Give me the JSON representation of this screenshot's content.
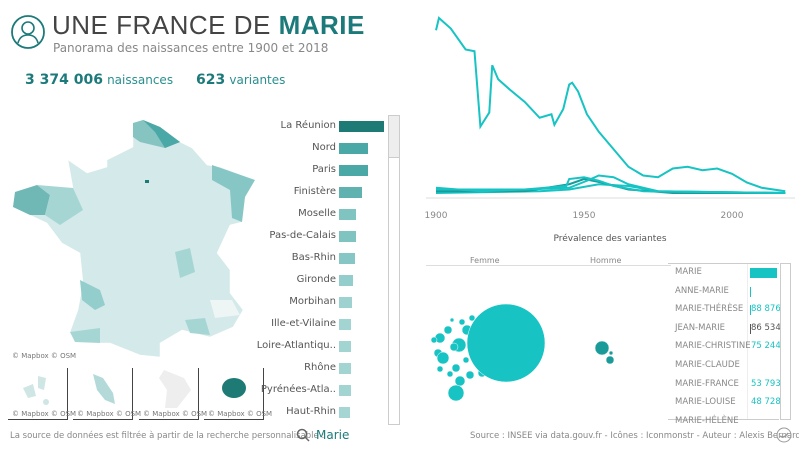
{
  "header": {
    "title_prefix": "UNE FRANCE DE ",
    "title_name": "MARIE",
    "subtitle": "Panorama des naissances entre 1900 et 2018",
    "icon": "user-icon"
  },
  "kpis": {
    "births_value": "3 374 006",
    "births_label": "naissances",
    "variants_value": "623",
    "variants_label": "variantes"
  },
  "colors": {
    "accent": "#1d7a7a",
    "line": "#17c3c3",
    "bubble": "#17c3c3",
    "bubble_male": "#1a9a98"
  },
  "departments": [
    {
      "name": "La Réunion",
      "value": 100,
      "color": "#1d7a74"
    },
    {
      "name": "Nord",
      "value": 64,
      "color": "#4aa8a6"
    },
    {
      "name": "Paris",
      "value": 64,
      "color": "#4aa8a6"
    },
    {
      "name": "Finistère",
      "value": 51,
      "color": "#5fb2b0"
    },
    {
      "name": "Moselle",
      "value": 38,
      "color": "#80c4c2"
    },
    {
      "name": "Pas-de-Calais",
      "value": 37,
      "color": "#80c4c2"
    },
    {
      "name": "Bas-Rhin",
      "value": 35,
      "color": "#86c7c5"
    },
    {
      "name": "Gironde",
      "value": 31,
      "color": "#93cecc"
    },
    {
      "name": "Morbihan",
      "value": 29,
      "color": "#9dd2d0"
    },
    {
      "name": "Ille-et-Vilaine",
      "value": 27,
      "color": "#a2d4d2"
    },
    {
      "name": "Loire-Atlantiqu..",
      "value": 27,
      "color": "#a2d4d2"
    },
    {
      "name": "Rhône",
      "value": 27,
      "color": "#a2d4d2"
    },
    {
      "name": "Pyrénées-Atla..",
      "value": 27,
      "color": "#a2d4d2"
    },
    {
      "name": "Haut-Rhin",
      "value": 25,
      "color": "#a6d6d4"
    }
  ],
  "map": {
    "attribution": "© Mapbox © OSM",
    "insets": [
      "Guadeloupe",
      "Martinique",
      "Guyane",
      "La Réunion"
    ]
  },
  "chart_data": {
    "type": "line",
    "x_ticks": [
      "1900",
      "1950",
      "2000"
    ],
    "xlim": [
      1898,
      2018
    ],
    "series": [
      {
        "color": "#17c3c3",
        "points": [
          [
            1900,
            93
          ],
          [
            1901,
            100
          ],
          [
            1905,
            94
          ],
          [
            1910,
            82
          ],
          [
            1913,
            81
          ],
          [
            1915,
            38
          ],
          [
            1918,
            46
          ],
          [
            1919,
            73
          ],
          [
            1921,
            65
          ],
          [
            1925,
            59
          ],
          [
            1930,
            52
          ],
          [
            1935,
            43
          ],
          [
            1939,
            45
          ],
          [
            1940,
            39
          ],
          [
            1943,
            48
          ],
          [
            1945,
            62
          ],
          [
            1946,
            63
          ],
          [
            1948,
            58
          ],
          [
            1951,
            45
          ],
          [
            1955,
            35
          ],
          [
            1960,
            25
          ],
          [
            1965,
            15
          ],
          [
            1970,
            10
          ],
          [
            1975,
            9
          ],
          [
            1980,
            14
          ],
          [
            1985,
            15
          ],
          [
            1990,
            13
          ],
          [
            1995,
            14
          ],
          [
            2000,
            11
          ],
          [
            2005,
            6
          ],
          [
            2010,
            3
          ],
          [
            2018,
            1
          ]
        ]
      },
      {
        "color": "#17c3c3",
        "points": [
          [
            1900,
            3
          ],
          [
            1915,
            1
          ],
          [
            1930,
            2
          ],
          [
            1944,
            4
          ],
          [
            1945,
            8
          ],
          [
            1950,
            9
          ],
          [
            1955,
            7
          ],
          [
            1960,
            4
          ],
          [
            1970,
            1
          ],
          [
            2018,
            0
          ]
        ]
      },
      {
        "color": "#17c3c3",
        "points": [
          [
            1900,
            2
          ],
          [
            1930,
            2
          ],
          [
            1945,
            3
          ],
          [
            1951,
            7
          ],
          [
            1955,
            10
          ],
          [
            1960,
            9
          ],
          [
            1965,
            5
          ],
          [
            1975,
            1
          ],
          [
            2018,
            0
          ]
        ]
      },
      {
        "color": "#1a9a98",
        "points": [
          [
            1900,
            1
          ],
          [
            1930,
            1
          ],
          [
            1945,
            5
          ],
          [
            1950,
            8
          ],
          [
            1956,
            6
          ],
          [
            1965,
            2
          ],
          [
            1980,
            0
          ],
          [
            2018,
            0
          ]
        ]
      },
      {
        "color": "#17c3c3",
        "points": [
          [
            1900,
            0
          ],
          [
            1935,
            1
          ],
          [
            1945,
            2
          ],
          [
            1955,
            5
          ],
          [
            1965,
            4
          ],
          [
            1975,
            1
          ],
          [
            2018,
            0
          ]
        ]
      }
    ]
  },
  "prevalence": {
    "title": "Prévalence des variantes",
    "col_female": "Femme",
    "col_male": "Homme"
  },
  "variants": [
    {
      "name": "MARIE",
      "value": "",
      "bar": 1
    },
    {
      "name": "ANNE-MARIE",
      "value": "",
      "bar": 0.02
    },
    {
      "name": "MARIE-THÉRÈSE",
      "value": "88 876",
      "bar": 0.01
    },
    {
      "name": "JEAN-MARIE",
      "value": "86 534",
      "bar": 0.01
    },
    {
      "name": "MARIE-CHRISTINE",
      "value": "75 244",
      "bar": 0
    },
    {
      "name": "MARIE-CLAUDE",
      "value": "",
      "bar": 0
    },
    {
      "name": "MARIE-FRANCE",
      "value": "53 793",
      "bar": 0
    },
    {
      "name": "MARIE-LOUISE",
      "value": "48 728",
      "bar": 0
    },
    {
      "name": "MARIE-HÉLÈNE",
      "value": "",
      "bar": 0
    }
  ],
  "footer": {
    "filter_text": "La source de données est filtrée à partir de la recherche personnalisable :",
    "search_value": "Marie",
    "credits": "Source : INSEE via data.gouv.fr - Icônes : Iconmonstr - Auteur : Alexis Bernard"
  }
}
